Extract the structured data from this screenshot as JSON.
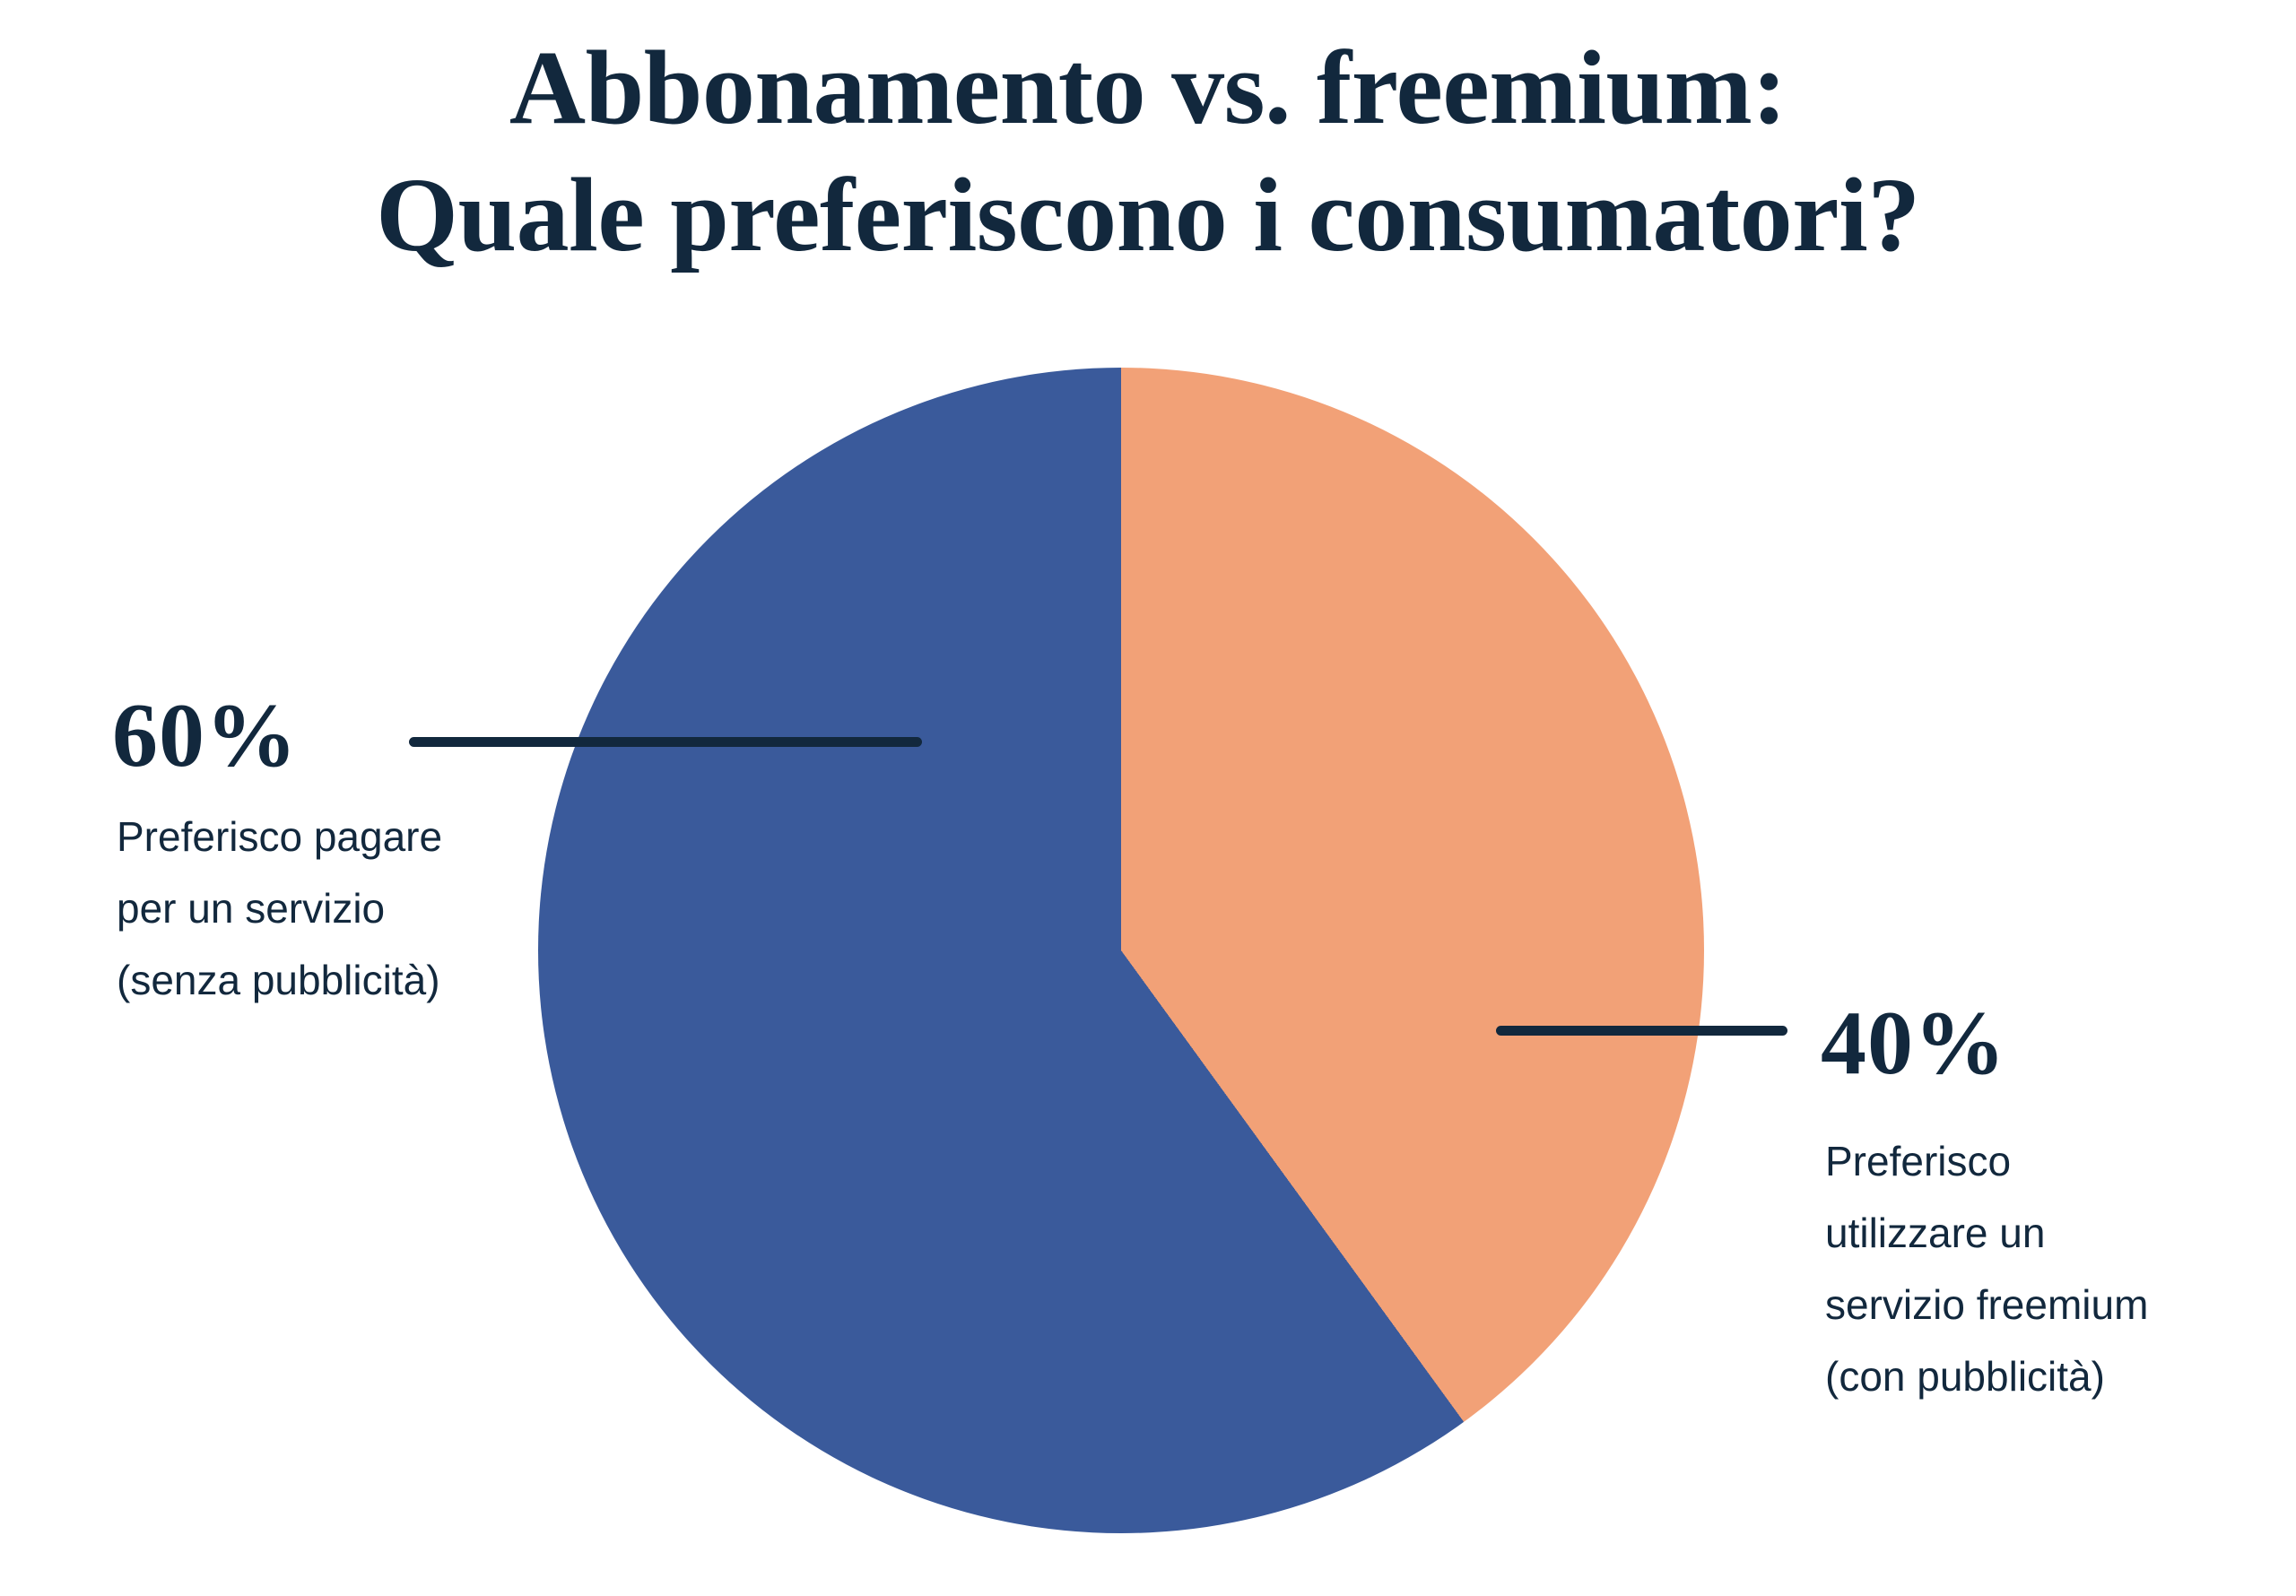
{
  "title": {
    "line1": "Abbonamento vs. freemium:",
    "line2": "Quale preferiscono i consumatori?"
  },
  "chart_data": {
    "type": "pie",
    "title": "Abbonamento vs. freemium: Quale preferiscono i consumatori?",
    "direction": "clockwise",
    "start_angle_deg_from_top": 0,
    "legend": "none",
    "labels_style": "external value labels with horizontal leader lines",
    "slices": [
      {
        "name": "freemium",
        "value_pct": 40,
        "value_label": "40%",
        "label": "Preferisco utilizzare un servizio freemium (con pubblicità)",
        "color": "#F2A177",
        "position": "right side of pie, from 12 o'clock clockwise to 144°"
      },
      {
        "name": "abbonamento",
        "value_pct": 60,
        "value_label": "60%",
        "label": "Preferisco pagare per un servizio (senza pubblicità)",
        "color": "#3A5A9B",
        "position": "left side of pie, from 144° clockwise back to 12 o'clock"
      }
    ]
  },
  "annotations": {
    "left": {
      "value_label": "60%",
      "lines": [
        "Preferisco pagare",
        "per un servizio",
        "(senza pubblicità)"
      ]
    },
    "right": {
      "value_label": "40%",
      "lines": [
        "Preferisco",
        "utilizzare un",
        "servizio freemium",
        "(con pubblicità)"
      ]
    }
  },
  "colors": {
    "slice_blue": "#3A5A9B",
    "slice_orange": "#F2A177",
    "text_navy": "#12283D",
    "leader_line": "#12283D",
    "background": "#FFFFFF"
  }
}
